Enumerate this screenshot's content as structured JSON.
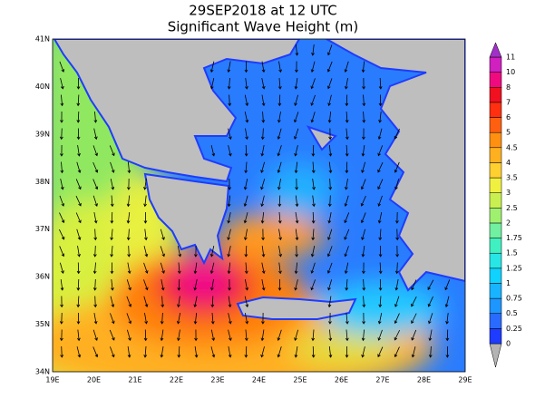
{
  "header": {
    "title": "29SEP2018 at 12 UTC",
    "subtitle": "Significant Wave Height (m)"
  },
  "map": {
    "lat_labels": [
      "41N",
      "40N",
      "39N",
      "38N",
      "37N",
      "36N",
      "35N",
      "34N"
    ],
    "lon_labels": [
      "19E",
      "20E",
      "21E",
      "22E",
      "23E",
      "24E",
      "25E",
      "26E",
      "27E",
      "28E",
      "29E"
    ]
  },
  "colorbar": {
    "labels": [
      "0",
      "0.25",
      "0.5",
      "0.75",
      "1",
      "1.25",
      "1.5",
      "1.75",
      "2",
      "2.5",
      "3",
      "3.5",
      "4",
      "4.5",
      "5",
      "6",
      "7",
      "8",
      "10",
      "11"
    ],
    "colors": [
      "#b4b4b4",
      "#1e3cff",
      "#2a6bff",
      "#1e96ff",
      "#18b4ff",
      "#10d2ff",
      "#28e6e6",
      "#40f0c0",
      "#70f0a0",
      "#a0f070",
      "#c8f050",
      "#f0f040",
      "#ffd030",
      "#ffb020",
      "#ff9010",
      "#ff6010",
      "#ff3010",
      "#f01020",
      "#f00a80",
      "#d020c0",
      "#a030c8"
    ]
  }
}
